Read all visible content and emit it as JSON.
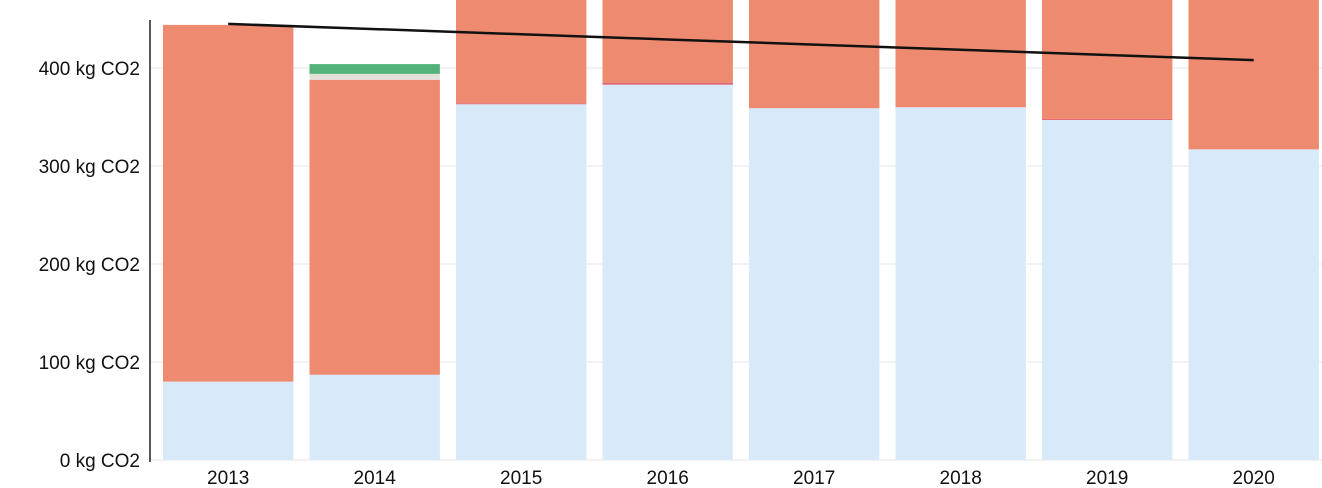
{
  "chart_data": {
    "type": "bar",
    "stacked": true,
    "categories": [
      "2013",
      "2014",
      "2015",
      "2016",
      "2017",
      "2018",
      "2019",
      "2020"
    ],
    "series": [
      {
        "values": [
          80,
          87,
          363,
          383,
          359,
          360,
          347,
          317
        ],
        "color": "#d8e9f9"
      },
      {
        "values": [
          0,
          0,
          1,
          2,
          0,
          0,
          1,
          0
        ],
        "color": "#e2626b"
      },
      {
        "values": [
          364,
          301,
          106,
          85,
          111,
          111,
          123,
          158
        ],
        "color": "#ed8a70"
      },
      {
        "values": [
          0,
          6,
          0,
          0,
          0,
          0,
          0,
          0
        ],
        "color": "#e3e1d9"
      },
      {
        "values": [
          0,
          10,
          0,
          0,
          0,
          0,
          0,
          0
        ],
        "color": "#55b27a"
      }
    ],
    "line": {
      "type": "line",
      "values": [
        445,
        null,
        null,
        null,
        null,
        null,
        null,
        408
      ],
      "color": "#111111"
    },
    "yticks": [
      "0 kg CO2",
      "100 kg CO2",
      "200 kg CO2",
      "300 kg CO2",
      "400 kg CO2"
    ],
    "ylim": [
      0,
      480
    ],
    "grid": true,
    "xlabel": "",
    "ylabel": "",
    "title": ""
  }
}
